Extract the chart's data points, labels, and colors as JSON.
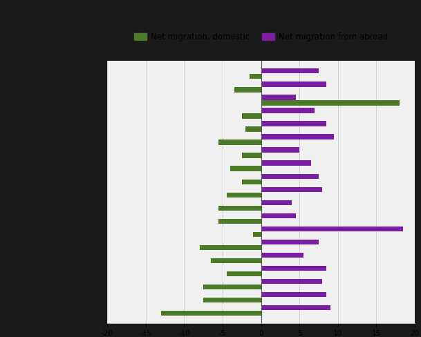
{
  "legend_domestic": "Net migration, domestic",
  "legend_abroad": "Net migration from abroad",
  "color_domestic": "#4d7a29",
  "color_abroad": "#7b1fa2",
  "outer_bg": "#1a1a1a",
  "plot_bg_color": "#f0f0f0",
  "grid_color": "#cccccc",
  "domestic": [
    -1.5,
    -3.5,
    18.0,
    -2.5,
    -2.0,
    -5.5,
    -2.5,
    -4.0,
    -2.5,
    -4.5,
    -5.5,
    -5.5,
    -1.0,
    -8.0,
    -6.5,
    -4.5,
    -7.5,
    -7.5,
    -13.0
  ],
  "abroad": [
    7.5,
    8.5,
    4.5,
    7.0,
    8.5,
    9.5,
    5.0,
    6.5,
    7.5,
    8.0,
    4.0,
    4.5,
    18.5,
    7.5,
    5.5,
    8.5,
    8.0,
    8.5,
    9.0
  ],
  "xlim": [
    -20,
    20
  ],
  "xticks": [
    -20,
    -15,
    -10,
    -5,
    0,
    5,
    10,
    15,
    20
  ],
  "figsize": [
    6.09,
    4.88
  ],
  "dpi": 100
}
